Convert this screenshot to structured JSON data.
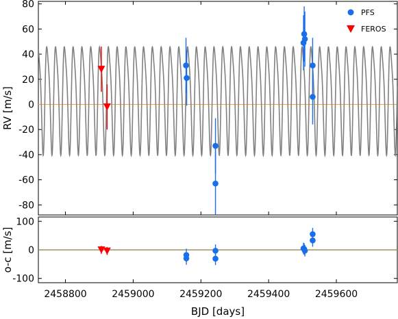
{
  "chart_data": [
    {
      "type": "scatter",
      "panel": "rv",
      "ylabel": "RV [m/s]",
      "ylim": [
        -88,
        82
      ],
      "xlim": [
        2458720,
        2459780
      ],
      "y_ticks": [
        {
          "value": 80,
          "label": "80"
        },
        {
          "value": 60,
          "label": "60"
        },
        {
          "value": 40,
          "label": "40"
        },
        {
          "value": 20,
          "label": "20"
        },
        {
          "value": 0,
          "label": "0"
        },
        {
          "value": -20,
          "label": "-20"
        },
        {
          "value": -40,
          "label": "-40"
        },
        {
          "value": -60,
          "label": "-60"
        },
        {
          "value": -80,
          "label": "-80"
        }
      ],
      "legend_position": "top-right",
      "model": {
        "amplitude": 50,
        "offset": 8,
        "period": 26,
        "phase": 2458740,
        "color": "#808080"
      },
      "zero_line_color": "#f5a040",
      "series": [
        {
          "name": "PFS",
          "marker": "circle",
          "color": "#1a6fe8",
          "points": [
            {
              "x": 2459156,
              "y": 31,
              "err": 22
            },
            {
              "x": 2459158,
              "y": 21,
              "err": 22
            },
            {
              "x": 2459243,
              "y": -33,
              "err": 22
            },
            {
              "x": 2459243,
              "y": -63,
              "err": 30
            },
            {
              "x": 2459503,
              "y": 49,
              "err": 22
            },
            {
              "x": 2459505,
              "y": 56,
              "err": 22
            },
            {
              "x": 2459507,
              "y": 52,
              "err": 22
            },
            {
              "x": 2459530,
              "y": 31,
              "err": 22
            },
            {
              "x": 2459530,
              "y": 6,
              "err": 22
            }
          ]
        },
        {
          "name": "FEROS",
          "marker": "triangle-down",
          "color": "#ff0000",
          "points": [
            {
              "x": 2458906,
              "y": 28,
              "err": 18
            },
            {
              "x": 2458923,
              "y": -2,
              "err": 18
            }
          ]
        }
      ]
    },
    {
      "type": "scatter",
      "panel": "residuals",
      "ylabel": "o-c [m/s]",
      "xlabel": "BJD [days]",
      "ylim": [
        -115,
        115
      ],
      "xlim": [
        2458720,
        2459780
      ],
      "y_ticks": [
        {
          "value": 100,
          "label": "100"
        },
        {
          "value": 0,
          "label": "0"
        },
        {
          "value": -100,
          "label": "-100"
        }
      ],
      "x_ticks": [
        {
          "value": 2458800,
          "label": "2458800"
        },
        {
          "value": 2459000,
          "label": "2459000"
        },
        {
          "value": 2459200,
          "label": "2459200"
        },
        {
          "value": 2459400,
          "label": "2459400"
        },
        {
          "value": 2459600,
          "label": "2459600"
        }
      ],
      "zero_line_color": "#8b7d3a",
      "series": [
        {
          "name": "PFS",
          "marker": "circle",
          "color": "#1a6fe8",
          "points": [
            {
              "x": 2459157,
              "y": -18,
              "err": 22
            },
            {
              "x": 2459157,
              "y": -30,
              "err": 22
            },
            {
              "x": 2459243,
              "y": -3,
              "err": 22
            },
            {
              "x": 2459243,
              "y": -31,
              "err": 22
            },
            {
              "x": 2459503,
              "y": 5,
              "err": 20
            },
            {
              "x": 2459505,
              "y": 3,
              "err": 20
            },
            {
              "x": 2459507,
              "y": -3,
              "err": 20
            },
            {
              "x": 2459530,
              "y": 55,
              "err": 22
            },
            {
              "x": 2459530,
              "y": 33,
              "err": 22
            }
          ]
        },
        {
          "name": "FEROS",
          "marker": "triangle-down",
          "color": "#ff0000",
          "points": [
            {
              "x": 2458906,
              "y": 0,
              "err": 14
            },
            {
              "x": 2458923,
              "y": -4,
              "err": 14
            }
          ]
        }
      ]
    }
  ]
}
